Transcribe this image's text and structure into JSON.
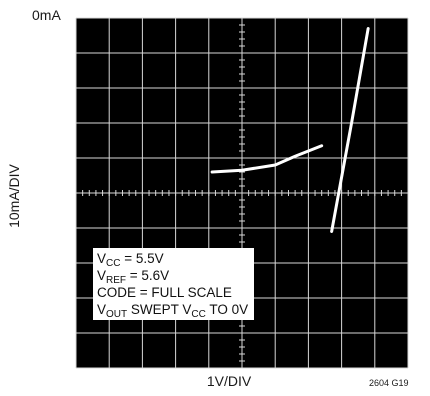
{
  "chart_data": {
    "type": "line",
    "title": "",
    "xlabel": "1V/DIV",
    "ylabel": "10mA/DIV",
    "top_left_label": "0mA",
    "figure_id": "2604 G19",
    "grid": true,
    "divisions": {
      "x": 10,
      "y": 10
    },
    "series": [
      {
        "values_in_divisions": [
          {
            "x": 4.1,
            "y": 5.6
          },
          {
            "x": 5.0,
            "y": 5.65
          },
          {
            "x": 6.0,
            "y": 5.8
          },
          {
            "x": 6.6,
            "y": 6.05
          },
          {
            "x": 7.4,
            "y": 6.35
          }
        ]
      },
      {
        "values_in_divisions": [
          {
            "x": 7.7,
            "y": 3.9
          },
          {
            "x": 8.3,
            "y": 7.0
          },
          {
            "x": 8.8,
            "y": 9.7
          }
        ]
      }
    ],
    "trace_color": "#ffffff",
    "background_color": "#000000",
    "grid_color": "#d8d8d8"
  },
  "legend": {
    "lines": [
      {
        "prefix": "V",
        "sub": "CC",
        "rest": " = 5.5V"
      },
      {
        "prefix": "V",
        "sub": "REF",
        "rest": " = 5.6V"
      },
      {
        "prefix": "CODE = FULL SCALE",
        "sub": "",
        "rest": ""
      },
      {
        "prefix": "V",
        "sub": "OUT",
        "rest": "  SWEPT V",
        "sub2": "CC",
        "rest2": " TO 0V"
      }
    ]
  }
}
